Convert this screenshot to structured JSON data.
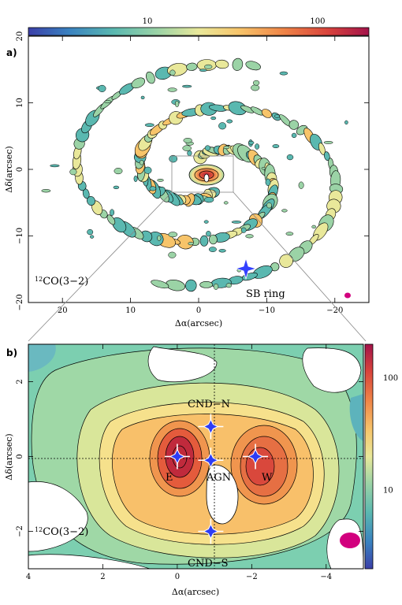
{
  "chart_data": [
    {
      "type": "heatmap",
      "panel_label": "a)",
      "xlabel": "Δα(arcsec)",
      "ylabel": "Δδ(arcsec)",
      "xlim": [
        25,
        -25
      ],
      "ylim": [
        -20,
        20
      ],
      "xticks": [
        "20",
        "10",
        "0",
        "−10",
        "−20"
      ],
      "yticks": [
        "20",
        "10",
        "0",
        "−10",
        "−20"
      ],
      "colorbar": {
        "scale": "log",
        "range": [
          2,
          200
        ],
        "ticks": [
          "10",
          "100"
        ]
      },
      "annotations": [
        {
          "text": "12CO(3−2)",
          "sup": "12",
          "rest": "CO(3−2)"
        },
        {
          "text": "SB ring"
        }
      ],
      "zoom_box": {
        "x": [
          4,
          -4
        ],
        "y": [
          3,
          -3
        ]
      },
      "markers": [
        {
          "x": -7,
          "y": -14,
          "type": "star"
        }
      ],
      "beam_color": "#d2007e"
    },
    {
      "type": "heatmap",
      "panel_label": "b)",
      "xlabel": "Δα(arcsec)",
      "ylabel": "Δδ(arcsec)",
      "xlim": [
        4,
        -5
      ],
      "ylim": [
        -3,
        3
      ],
      "xticks": [
        "4",
        "2",
        "0",
        "−2",
        "−4"
      ],
      "yticks": [
        "2",
        "0",
        "−2"
      ],
      "colorbar": {
        "scale": "log",
        "range": [
          2,
          200
        ],
        "ticks": [
          "100",
          "10"
        ]
      },
      "annotations": [
        {
          "text": "12CO(3−2)",
          "sup": "12",
          "rest": "CO(3−2)"
        },
        {
          "text": "CND−N"
        },
        {
          "text": "CND−S"
        },
        {
          "text": "E"
        },
        {
          "text": "AGN"
        },
        {
          "text": "W"
        }
      ],
      "markers": [
        {
          "name": "E",
          "x": 0.0,
          "y": 0.0
        },
        {
          "name": "AGN",
          "x": -0.9,
          "y": -0.1
        },
        {
          "name": "CND-N",
          "x": -0.9,
          "y": 0.8
        },
        {
          "name": "W",
          "x": -2.1,
          "y": 0.0
        },
        {
          "name": "CND-S",
          "x": -0.9,
          "y": -2.0
        }
      ],
      "beam_color": "#d2007e"
    }
  ]
}
